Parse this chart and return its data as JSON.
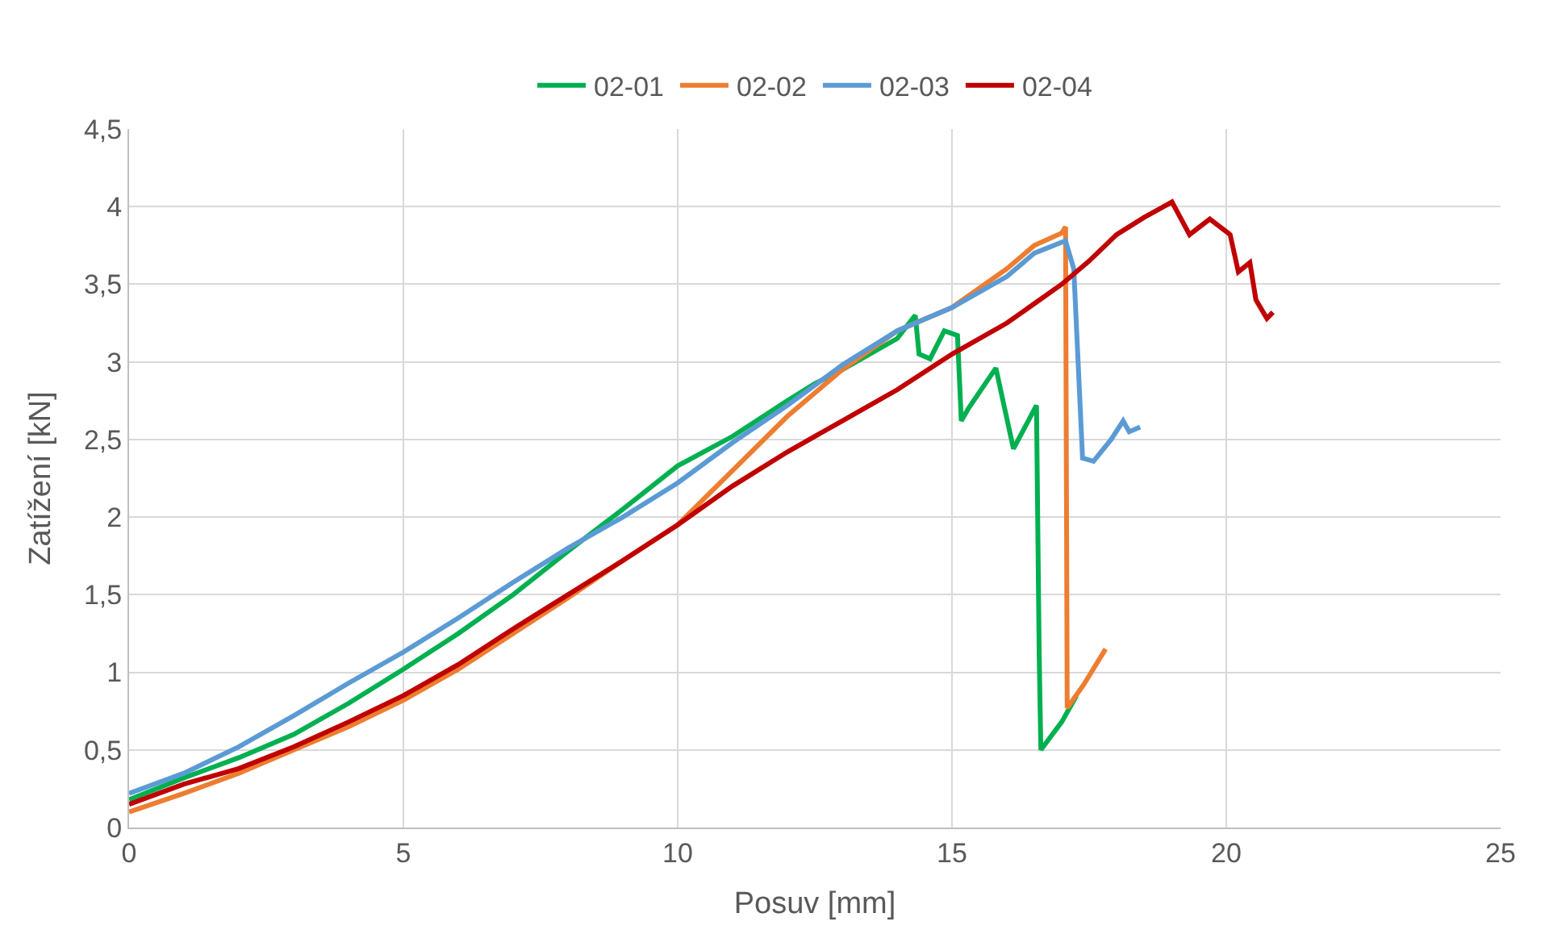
{
  "chart_data": {
    "type": "line",
    "xlabel": "Posuv [mm]",
    "ylabel": "Zatížení [kN]",
    "xlim": [
      0,
      25
    ],
    "ylim": [
      0,
      4.5
    ],
    "xticks": [
      0,
      5,
      10,
      15,
      20,
      25
    ],
    "yticks": [
      0,
      {
        "value": 0.5,
        "label": "0,5"
      },
      1,
      {
        "value": 1.5,
        "label": "1,5"
      },
      2,
      {
        "value": 2.5,
        "label": "2,5"
      },
      3,
      {
        "value": 3.5,
        "label": "3,5"
      },
      4,
      {
        "value": 4.5,
        "label": "4,5"
      }
    ],
    "grid": true,
    "legend": "top",
    "marker": "none",
    "line_style": "solid",
    "series": [
      {
        "name": "02-01",
        "color": "#00b050",
        "x": [
          0,
          1,
          2,
          3,
          4,
          5,
          6,
          7,
          8,
          9,
          10,
          11,
          12,
          12.5,
          13,
          14,
          14.33,
          14.4,
          14.6,
          14.86,
          15.1,
          15.17,
          15.3,
          15.8,
          16.12,
          16.54,
          16.59,
          16.62,
          17,
          17.27
        ],
        "values": [
          0.18,
          0.32,
          0.45,
          0.6,
          0.8,
          1.02,
          1.25,
          1.5,
          1.78,
          2.05,
          2.33,
          2.52,
          2.75,
          2.86,
          2.95,
          3.15,
          3.3,
          3.05,
          3.02,
          3.2,
          3.17,
          2.62,
          2.7,
          2.96,
          2.44,
          2.72,
          1.1,
          0.5,
          0.68,
          0.85
        ]
      },
      {
        "name": "02-02",
        "color": "#ed7d31",
        "x": [
          0,
          1,
          2,
          3,
          4,
          5,
          6,
          7,
          8,
          9,
          10,
          11,
          12,
          13,
          14,
          15,
          16,
          16.5,
          17,
          17.07,
          17.1,
          17.4,
          17.8
        ],
        "values": [
          0.1,
          0.22,
          0.35,
          0.5,
          0.65,
          0.82,
          1.02,
          1.25,
          1.48,
          1.72,
          1.95,
          2.3,
          2.65,
          2.95,
          3.2,
          3.35,
          3.6,
          3.75,
          3.83,
          3.87,
          0.77,
          0.92,
          1.15
        ]
      },
      {
        "name": "02-03",
        "color": "#5b9bd5",
        "x": [
          0,
          1,
          2,
          3,
          4,
          5,
          6,
          7,
          8,
          9,
          10,
          11,
          12,
          13,
          14,
          15,
          16,
          16.5,
          17.07,
          17.22,
          17.38,
          17.58,
          17.9,
          18.12,
          18.23,
          18.43
        ],
        "values": [
          0.22,
          0.35,
          0.52,
          0.72,
          0.93,
          1.13,
          1.35,
          1.58,
          1.8,
          2.0,
          2.22,
          2.48,
          2.72,
          2.98,
          3.2,
          3.35,
          3.55,
          3.7,
          3.78,
          3.6,
          2.38,
          2.36,
          2.5,
          2.62,
          2.55,
          2.58
        ]
      },
      {
        "name": "02-04",
        "color": "#c00000",
        "x": [
          0,
          1,
          2,
          3,
          4,
          5,
          6,
          7,
          8,
          9,
          10,
          11,
          12,
          13,
          14,
          15,
          16,
          17,
          17.5,
          18,
          18.5,
          19.01,
          19.33,
          19.7,
          20.07,
          20.22,
          20.43,
          20.54,
          20.74,
          20.85
        ],
        "values": [
          0.15,
          0.28,
          0.38,
          0.52,
          0.68,
          0.85,
          1.05,
          1.28,
          1.5,
          1.72,
          1.95,
          2.2,
          2.42,
          2.62,
          2.82,
          3.05,
          3.25,
          3.5,
          3.65,
          3.82,
          3.93,
          4.03,
          3.82,
          3.92,
          3.82,
          3.58,
          3.64,
          3.4,
          3.28,
          3.32
        ]
      }
    ]
  }
}
